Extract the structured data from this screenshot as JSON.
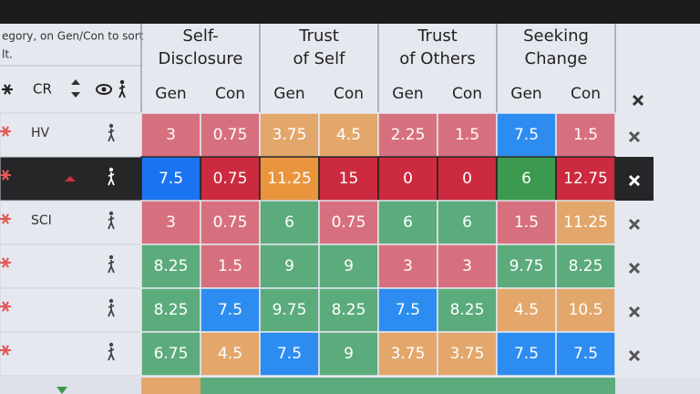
{
  "header": {
    "hint": [
      "egory, on Gen/Con to sort",
      "lt."
    ],
    "cr": "CR"
  },
  "groups": [
    {
      "name": [
        "Self-",
        "Disclosure"
      ],
      "subs": [
        "Gen",
        "Con"
      ]
    },
    {
      "name": [
        "Trust",
        "of Self"
      ],
      "subs": [
        "Gen",
        "Con"
      ]
    },
    {
      "name": [
        "Trust",
        "of Others"
      ],
      "subs": [
        "Gen",
        "Con"
      ]
    },
    {
      "name": [
        "Seeking",
        "Change"
      ],
      "subs": [
        "Gen",
        "Con"
      ]
    }
  ],
  "rows": [
    {
      "label": "HV",
      "cells": [
        "3",
        "0.75",
        "3.75",
        "4.5",
        "2.25",
        "1.5",
        "7.5",
        "1.5"
      ],
      "colors": [
        "#d7707e",
        "#d7707e",
        "#e3a76c",
        "#e3a76c",
        "#d7707e",
        "#d7707e",
        "#2d8cf0",
        "#d7707e"
      ]
    },
    {
      "label": "",
      "cells": [
        "7.5",
        "0.75",
        "11.25",
        "15",
        "0",
        "0",
        "6",
        "12.75"
      ],
      "colors": [
        "#1a73f0",
        "#cc2a3e",
        "#e8953e",
        "#cc2a3e",
        "#cc2a3e",
        "#cc2a3e",
        "#3c9a4e",
        "#cc2a3e"
      ],
      "selected": true
    },
    {
      "label": "SCI",
      "cells": [
        "3",
        "0.75",
        "6",
        "0.75",
        "6",
        "6",
        "1.5",
        "11.25"
      ],
      "colors": [
        "#d7707e",
        "#d7707e",
        "#5cab7c",
        "#d7707e",
        "#5cab7c",
        "#5cab7c",
        "#d7707e",
        "#e3a76c"
      ]
    },
    {
      "label": "",
      "cells": [
        "8.25",
        "1.5",
        "9",
        "9",
        "3",
        "3",
        "9.75",
        "8.25"
      ],
      "colors": [
        "#5cab7c",
        "#d7707e",
        "#5cab7c",
        "#5cab7c",
        "#d7707e",
        "#d7707e",
        "#5cab7c",
        "#5cab7c"
      ]
    },
    {
      "label": "",
      "cells": [
        "8.25",
        "7.5",
        "9.75",
        "8.25",
        "7.5",
        "8.25",
        "4.5",
        "10.5"
      ],
      "colors": [
        "#5cab7c",
        "#2d8cf0",
        "#5cab7c",
        "#5cab7c",
        "#2d8cf0",
        "#5cab7c",
        "#e3a76c",
        "#e3a76c"
      ]
    },
    {
      "label": "",
      "cells": [
        "6.75",
        "4.5",
        "7.5",
        "9",
        "3.75",
        "3.75",
        "7.5",
        "7.5"
      ],
      "colors": [
        "#5cab7c",
        "#e3a76c",
        "#2d8cf0",
        "#5cab7c",
        "#e3a76c",
        "#e3a76c",
        "#2d8cf0",
        "#2d8cf0"
      ]
    }
  ]
}
